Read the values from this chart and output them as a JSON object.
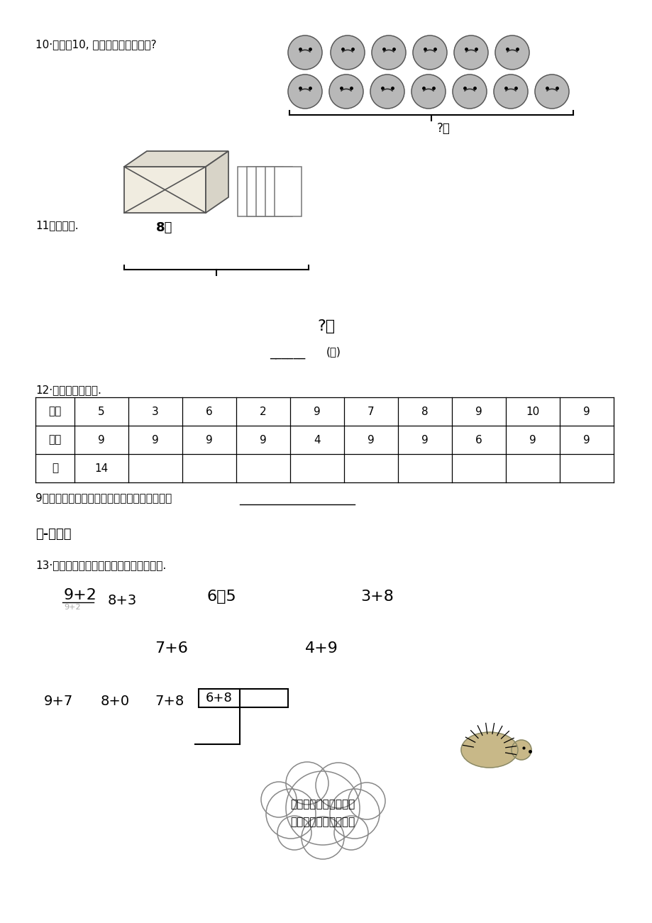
{
  "bg_color": "#ffffff",
  "q10_label": "10·先圈出10, 再算一算一共有多少?",
  "q10_answer": "?个",
  "q11_label": "11看图列式.",
  "q11_books": "8本",
  "q11_answer": "?本",
  "q11_unit": "(本)",
  "q12_label": "12·算一算，找规律.",
  "table_row1_label": "加数",
  "table_row1_vals": [
    "5",
    "3",
    "6",
    "2",
    "9",
    "7",
    "8",
    "9",
    "10",
    "9"
  ],
  "table_row2_label": "加数",
  "table_row2_vals": [
    "9",
    "9",
    "9",
    "9",
    "4",
    "9",
    "9",
    "6",
    "9",
    "9"
  ],
  "table_row3_label": "和",
  "table_row3_vals": [
    "14",
    "",
    "",
    "",
    "",
    "",
    "",
    "",
    "",
    ""
  ],
  "q12_note": "9和几相加进位加法，和个位上的数比较小数少",
  "section4_label": "四-解笽题",
  "q13_label": "13·想一想，有什么规律，再把算式补完整.",
  "cloud_text1": "别忘了把你发现的规律",
  "cloud_text2": "和小朋友们说一说哦。"
}
